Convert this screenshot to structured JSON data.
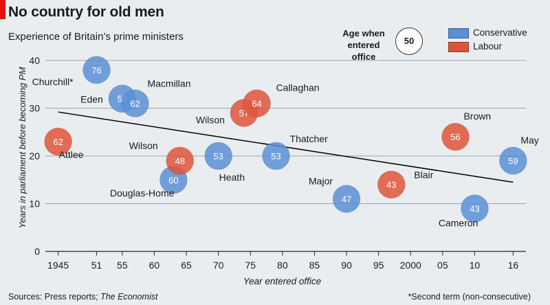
{
  "header": {
    "title": "No country for old men",
    "subtitle": "Experience of Britain’s prime ministers"
  },
  "footer": {
    "source_prefix": "Sources: Press reports; ",
    "source_italic": "The Economist",
    "footnote": "*Second term (non-consecutive)"
  },
  "colors": {
    "conservative": "#5b8fd6",
    "labour": "#e0533b",
    "trend": "#000000",
    "grid": "#9aa4ac",
    "background": "#e9edf0"
  },
  "chart_data": {
    "type": "scatter",
    "bubble_size_key": {
      "title": "Age when entered office",
      "sample_value": "50"
    },
    "legend": [
      {
        "name": "Conservative",
        "color_key": "conservative"
      },
      {
        "name": "Labour",
        "color_key": "labour"
      }
    ],
    "xlabel": "Year entered office",
    "ylabel": "Years in parliament before becoming PM",
    "xlim": [
      1943,
      2018
    ],
    "ylim": [
      0,
      40
    ],
    "x_ticks": [
      1945,
      1951,
      1955,
      1960,
      1965,
      1970,
      1975,
      1980,
      1985,
      1990,
      1995,
      2000,
      2005,
      2010,
      2016
    ],
    "x_tick_labels": [
      "1945",
      "51",
      "55",
      "60",
      "65",
      "70",
      "75",
      "80",
      "85",
      "90",
      "95",
      "2000",
      "05",
      "10",
      "16"
    ],
    "y_ticks": [
      0,
      10,
      20,
      30,
      40
    ],
    "trend_line": {
      "x": [
        1945,
        2016
      ],
      "y": [
        29.2,
        14.5
      ]
    },
    "points": [
      {
        "name": "Attlee",
        "party": "labour",
        "x": 1945,
        "y": 23,
        "age": "62"
      },
      {
        "name": "Churchill*",
        "party": "conservative",
        "x": 1951,
        "y": 38,
        "age": "76"
      },
      {
        "name": "Eden",
        "party": "conservative",
        "x": 1955,
        "y": 32,
        "age": "57"
      },
      {
        "name": "Macmillan",
        "party": "conservative",
        "x": 1957,
        "y": 31,
        "age": "62"
      },
      {
        "name": "Douglas-Home",
        "party": "conservative",
        "x": 1963,
        "y": 15,
        "age": "60"
      },
      {
        "name": "Wilson",
        "party": "labour",
        "x": 1964,
        "y": 19,
        "age": "48"
      },
      {
        "name": "Heath",
        "party": "conservative",
        "x": 1970,
        "y": 20,
        "age": "53"
      },
      {
        "name": "Wilson",
        "party": "labour",
        "x": 1974,
        "y": 29,
        "age": "57"
      },
      {
        "name": "Callaghan",
        "party": "labour",
        "x": 1976,
        "y": 31,
        "age": "64"
      },
      {
        "name": "Thatcher",
        "party": "conservative",
        "x": 1979,
        "y": 20,
        "age": "53"
      },
      {
        "name": "Major",
        "party": "conservative",
        "x": 1990,
        "y": 11,
        "age": "47"
      },
      {
        "name": "Blair",
        "party": "labour",
        "x": 1997,
        "y": 14,
        "age": "43"
      },
      {
        "name": "Brown",
        "party": "labour",
        "x": 2007,
        "y": 24,
        "age": "56"
      },
      {
        "name": "Cameron",
        "party": "conservative",
        "x": 2010,
        "y": 9,
        "age": "43"
      },
      {
        "name": "May",
        "party": "conservative",
        "x": 2016,
        "y": 19,
        "age": "59"
      }
    ]
  }
}
